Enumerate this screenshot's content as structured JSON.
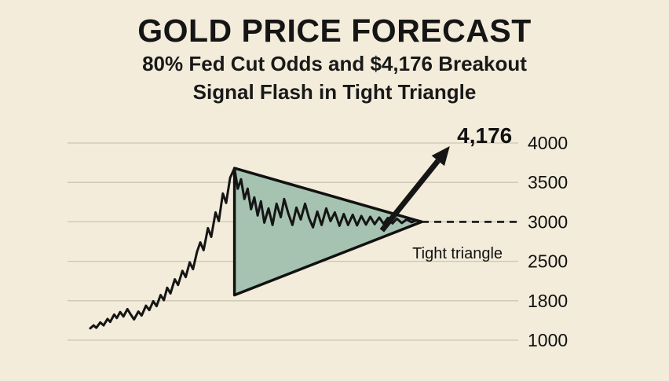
{
  "colors": {
    "background": "#f3ecda",
    "grid": "#cbc5b4",
    "line": "#151515",
    "triangle_fill": "#a6c3b1",
    "triangle_stroke": "#111111",
    "text": "#111111"
  },
  "header": {
    "title": "GOLD PRICE FORECAST",
    "subtitle_line1": "80% Fed Cut Odds and $4,176 Breakout",
    "subtitle_line2": "Signal Flash in Tight Triangle"
  },
  "chart_data": {
    "type": "line",
    "title": "GOLD PRICE FORECAST",
    "subtitle": "80% Fed Cut Odds and $4,176 Breakout Signal Flash in Tight Triangle",
    "grid": true,
    "y_ticks": [
      4000,
      3500,
      3000,
      2500,
      1800,
      1000
    ],
    "y_range": [
      1000,
      4176
    ],
    "series": [
      {
        "name": "gold-price",
        "points": [
          [
            0.0,
            1240
          ],
          [
            0.01,
            1300
          ],
          [
            0.018,
            1250
          ],
          [
            0.03,
            1360
          ],
          [
            0.04,
            1300
          ],
          [
            0.052,
            1430
          ],
          [
            0.06,
            1370
          ],
          [
            0.072,
            1520
          ],
          [
            0.08,
            1450
          ],
          [
            0.09,
            1570
          ],
          [
            0.1,
            1480
          ],
          [
            0.112,
            1630
          ],
          [
            0.122,
            1520
          ],
          [
            0.132,
            1420
          ],
          [
            0.145,
            1580
          ],
          [
            0.155,
            1500
          ],
          [
            0.168,
            1700
          ],
          [
            0.178,
            1610
          ],
          [
            0.19,
            1790
          ],
          [
            0.2,
            1690
          ],
          [
            0.212,
            1900
          ],
          [
            0.222,
            1810
          ],
          [
            0.232,
            2030
          ],
          [
            0.242,
            1930
          ],
          [
            0.255,
            2180
          ],
          [
            0.265,
            2080
          ],
          [
            0.278,
            2330
          ],
          [
            0.288,
            2220
          ],
          [
            0.3,
            2480
          ],
          [
            0.31,
            2360
          ],
          [
            0.322,
            2620
          ],
          [
            0.332,
            2740
          ],
          [
            0.342,
            2640
          ],
          [
            0.355,
            2920
          ],
          [
            0.365,
            2810
          ],
          [
            0.378,
            3120
          ],
          [
            0.388,
            3010
          ],
          [
            0.4,
            3360
          ],
          [
            0.41,
            3240
          ],
          [
            0.422,
            3560
          ],
          [
            0.435,
            3680
          ],
          [
            0.445,
            3420
          ],
          [
            0.455,
            3540
          ],
          [
            0.465,
            3290
          ],
          [
            0.475,
            3420
          ],
          [
            0.485,
            3160
          ],
          [
            0.495,
            3310
          ],
          [
            0.505,
            3080
          ],
          [
            0.515,
            3260
          ],
          [
            0.525,
            2990
          ],
          [
            0.538,
            3170
          ],
          [
            0.55,
            2960
          ],
          [
            0.562,
            3230
          ],
          [
            0.575,
            3060
          ],
          [
            0.585,
            3290
          ],
          [
            0.598,
            3100
          ],
          [
            0.61,
            2960
          ],
          [
            0.622,
            3180
          ],
          [
            0.635,
            3030
          ],
          [
            0.648,
            3230
          ],
          [
            0.66,
            3050
          ],
          [
            0.672,
            2930
          ],
          [
            0.685,
            3130
          ],
          [
            0.698,
            2960
          ],
          [
            0.712,
            3170
          ],
          [
            0.725,
            3010
          ],
          [
            0.738,
            3120
          ],
          [
            0.752,
            2950
          ],
          [
            0.765,
            3100
          ],
          [
            0.778,
            2960
          ],
          [
            0.792,
            3090
          ],
          [
            0.805,
            2955
          ],
          [
            0.818,
            3075
          ],
          [
            0.832,
            2965
          ],
          [
            0.845,
            3065
          ],
          [
            0.858,
            2970
          ],
          [
            0.872,
            3055
          ],
          [
            0.885,
            2975
          ],
          [
            0.898,
            3050
          ],
          [
            0.912,
            2980
          ],
          [
            0.925,
            3040
          ],
          [
            0.94,
            2985
          ],
          [
            0.955,
            3030
          ],
          [
            0.97,
            2995
          ],
          [
            0.985,
            3020
          ],
          [
            1.0,
            3005
          ]
        ]
      }
    ],
    "triangle": {
      "left_top": [
        0.435,
        3680
      ],
      "left_bottom": [
        0.435,
        1900
      ],
      "apex": [
        1.0,
        3000
      ]
    },
    "dashed_line": {
      "from": [
        1.0,
        3000
      ],
      "to": [
        1.287,
        3000
      ]
    },
    "arrow": {
      "from": [
        0.88,
        2890
      ],
      "to": [
        1.085,
        3960
      ]
    },
    "annotations": [
      {
        "id": "breakout-price",
        "text": "4,176",
        "pos": [
          1.19,
          4100
        ],
        "bold": true,
        "size": 28
      },
      {
        "id": "tight-triangle",
        "text": "Tight triangle",
        "pos": [
          1.108,
          2605
        ],
        "bold": false,
        "size": 20
      }
    ]
  }
}
